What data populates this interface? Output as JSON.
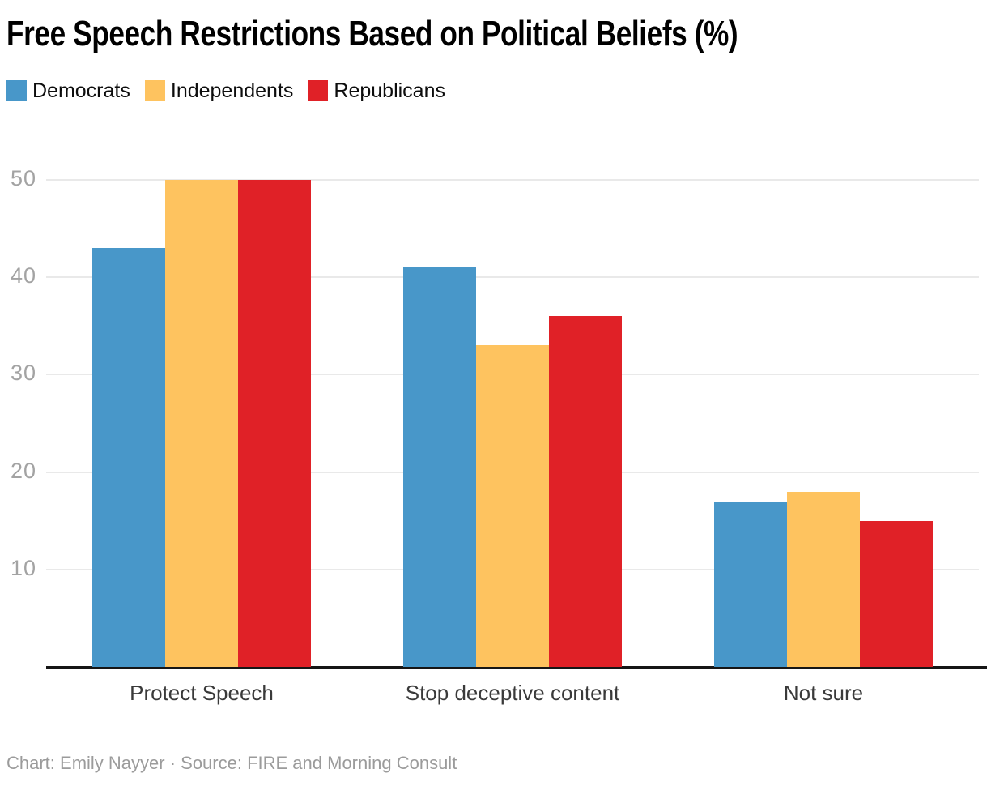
{
  "chart_data": {
    "type": "bar",
    "title": "Free Speech Restrictions Based on Political Beliefs (%)",
    "categories": [
      "Protect Speech",
      "Stop deceptive content",
      "Not sure"
    ],
    "series": [
      {
        "name": "Democrats",
        "color": "#4897c9",
        "values": [
          43,
          41,
          17
        ]
      },
      {
        "name": "Independents",
        "color": "#fec35f",
        "values": [
          50,
          33,
          18
        ]
      },
      {
        "name": "Republicans",
        "color": "#e02127",
        "values": [
          50,
          36,
          15
        ]
      }
    ],
    "ylim": [
      0,
      50
    ],
    "yticks": [
      10,
      20,
      30,
      40,
      50
    ],
    "grid": true,
    "legend_position": "top",
    "xlabel": "",
    "ylabel": "",
    "caption": "Chart: Emily Nayyer · Source: FIRE and Morning Consult"
  }
}
